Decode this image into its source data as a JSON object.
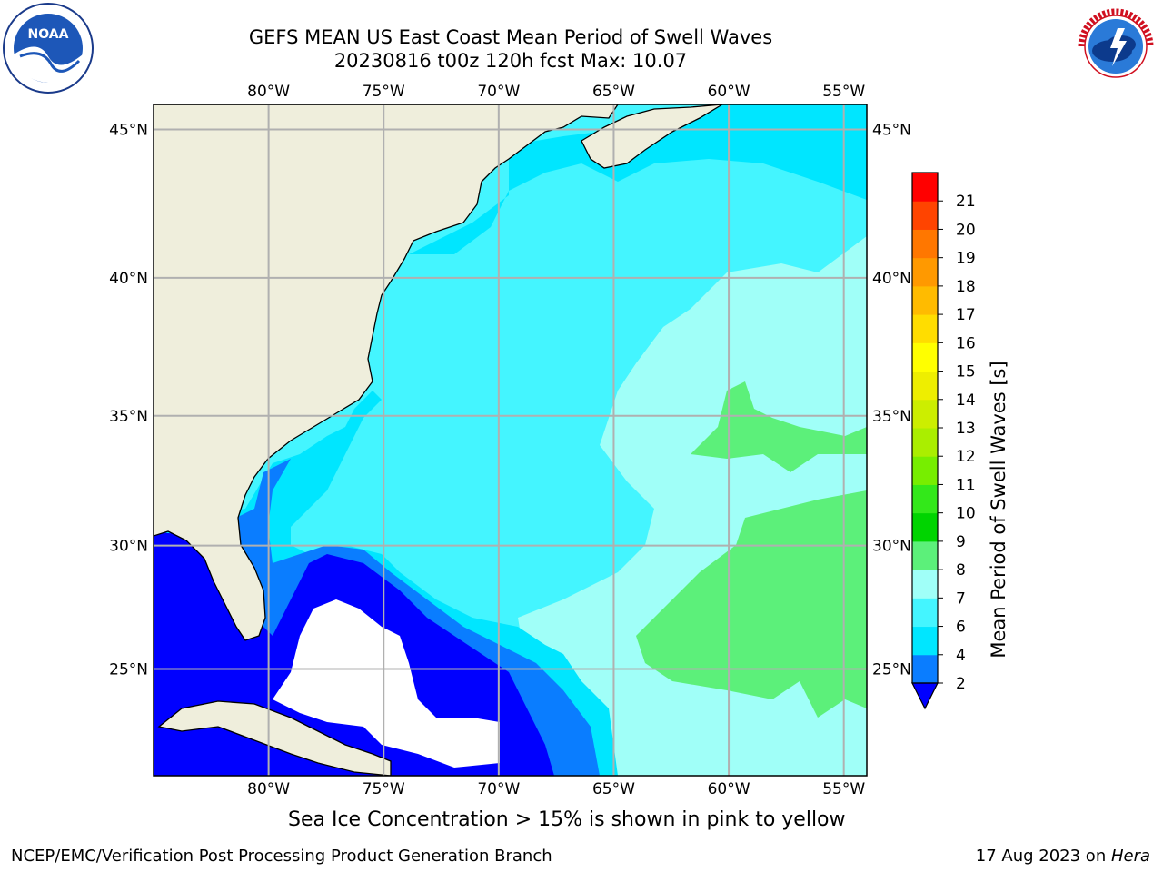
{
  "title": {
    "line1": "GEFS MEAN US East Coast Mean Period of Swell Waves",
    "line2": "20230816 t00z 120h fcst   Max: 10.07"
  },
  "logos": {
    "left": "noaa-logo",
    "right": "nws-logo",
    "left_text": "NOAA",
    "right_text": "NATIONAL WEATHER SERVICE"
  },
  "map": {
    "lon_ticks": [
      "80°W",
      "75°W",
      "70°W",
      "65°W",
      "60°W",
      "55°W"
    ],
    "lat_ticks_left": [
      "45°N",
      "40°N",
      "35°N",
      "30°N",
      "25°N"
    ],
    "lat_ticks_right": [
      "45°N",
      "40°N",
      "35°N",
      "30°N",
      "25°N"
    ],
    "lon_range": [
      -85,
      -54
    ],
    "lat_range": [
      20.5,
      45.8
    ],
    "land_color": "#efeedc",
    "grid_color": "#b0b0b0"
  },
  "colorbar": {
    "label": "Mean Period of Swell Waves [s]",
    "ticks": [
      "2",
      "4",
      "6",
      "7",
      "8",
      "9",
      "10",
      "11",
      "12",
      "13",
      "14",
      "15",
      "16",
      "17",
      "18",
      "19",
      "20",
      "21"
    ],
    "levels": [
      2,
      4,
      6,
      7,
      8,
      9,
      10,
      11,
      12,
      13,
      14,
      15,
      16,
      17,
      18,
      19,
      20,
      21
    ],
    "colors": [
      "#0a7dff",
      "#00e6ff",
      "#44f5ff",
      "#a0fff8",
      "#5cf07a",
      "#00d400",
      "#33e81a",
      "#77ee00",
      "#aaee00",
      "#ccee00",
      "#eeee00",
      "#ffff00",
      "#ffdd00",
      "#ffbb00",
      "#ff9900",
      "#ff7700",
      "#ff4400",
      "#ff0000"
    ],
    "under_color": "#0000ff"
  },
  "footer": {
    "note": "Sea Ice Concentration > 15% is shown in pink to yellow",
    "left": "NCEP/EMC/Verification Post Processing Product Generation Branch",
    "right_date": "17 Aug 2023 on ",
    "right_host": "Hera"
  }
}
